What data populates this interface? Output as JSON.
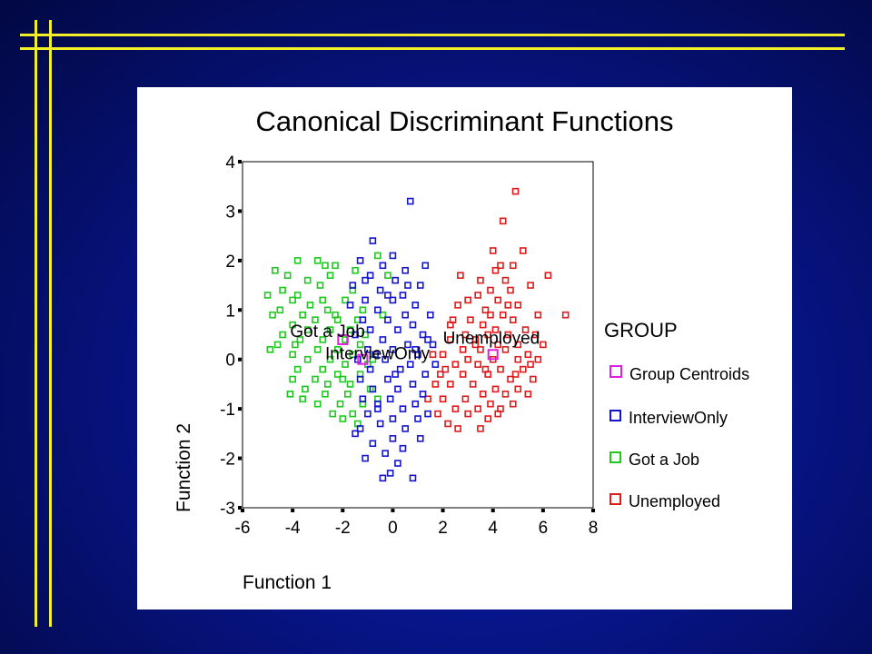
{
  "slide": {
    "accent_color": "#f2ee2a",
    "background_color": "#06127a"
  },
  "chart_data": {
    "type": "scatter",
    "title": "Canonical Discriminant Functions",
    "xlabel": "Function 1",
    "ylabel": "Function 2",
    "xlim": [
      -6,
      8
    ],
    "ylim": [
      -3,
      4
    ],
    "xticks": [
      "-6",
      "-4",
      "-2",
      "0",
      "2",
      "4",
      "6",
      "8"
    ],
    "yticks": [
      "4",
      "3",
      "2",
      "1",
      "0",
      "-1",
      "-2",
      "-3"
    ],
    "legend_title": "GROUP",
    "legend_position": "right",
    "series": [
      {
        "name": "Unemployed",
        "color": "#e01b1b",
        "points": [
          [
            4.9,
            3.4
          ],
          [
            4.4,
            2.8
          ],
          [
            4.0,
            2.2
          ],
          [
            5.2,
            2.2
          ],
          [
            4.3,
            1.9
          ],
          [
            4.8,
            1.9
          ],
          [
            4.1,
            1.8
          ],
          [
            2.7,
            1.7
          ],
          [
            6.2,
            1.7
          ],
          [
            3.5,
            1.6
          ],
          [
            4.5,
            1.6
          ],
          [
            5.5,
            1.5
          ],
          [
            4.7,
            1.4
          ],
          [
            3.9,
            1.4
          ],
          [
            3.4,
            1.3
          ],
          [
            3.0,
            1.2
          ],
          [
            4.2,
            1.2
          ],
          [
            5.0,
            1.1
          ],
          [
            2.6,
            1.1
          ],
          [
            3.7,
            1.0
          ],
          [
            4.4,
            0.9
          ],
          [
            5.8,
            0.9
          ],
          [
            6.9,
            0.9
          ],
          [
            2.4,
            0.8
          ],
          [
            3.1,
            0.8
          ],
          [
            4.8,
            0.8
          ],
          [
            3.6,
            0.7
          ],
          [
            4.1,
            0.6
          ],
          [
            5.3,
            0.6
          ],
          [
            2.9,
            0.5
          ],
          [
            3.8,
            0.5
          ],
          [
            4.6,
            0.5
          ],
          [
            5.7,
            0.5
          ],
          [
            2.3,
            0.4
          ],
          [
            3.3,
            0.4
          ],
          [
            4.2,
            0.3
          ],
          [
            5.0,
            0.3
          ],
          [
            6.0,
            0.3
          ],
          [
            2.8,
            0.2
          ],
          [
            3.5,
            0.2
          ],
          [
            4.5,
            0.2
          ],
          [
            5.4,
            0.1
          ],
          [
            2.0,
            0.1
          ],
          [
            3.0,
            0.0
          ],
          [
            4.0,
            0.0
          ],
          [
            5.0,
            0.0
          ],
          [
            5.8,
            0.0
          ],
          [
            2.5,
            -0.1
          ],
          [
            3.4,
            -0.1
          ],
          [
            4.3,
            -0.2
          ],
          [
            5.2,
            -0.2
          ],
          [
            1.9,
            -0.3
          ],
          [
            2.8,
            -0.3
          ],
          [
            3.8,
            -0.3
          ],
          [
            4.7,
            -0.4
          ],
          [
            5.6,
            -0.4
          ],
          [
            2.3,
            -0.5
          ],
          [
            3.2,
            -0.5
          ],
          [
            4.1,
            -0.6
          ],
          [
            5.0,
            -0.6
          ],
          [
            3.6,
            -0.7
          ],
          [
            4.5,
            -0.7
          ],
          [
            5.4,
            -0.7
          ],
          [
            2.0,
            -0.8
          ],
          [
            2.9,
            -0.8
          ],
          [
            3.9,
            -0.9
          ],
          [
            4.8,
            -0.9
          ],
          [
            2.5,
            -1.0
          ],
          [
            3.4,
            -1.0
          ],
          [
            4.3,
            -1.0
          ],
          [
            1.8,
            -1.1
          ],
          [
            3.0,
            -1.1
          ],
          [
            3.8,
            -1.2
          ],
          [
            2.2,
            -1.3
          ],
          [
            2.6,
            -1.4
          ],
          [
            3.5,
            -1.4
          ],
          [
            4.2,
            -1.1
          ],
          [
            1.4,
            -0.8
          ],
          [
            1.7,
            -0.5
          ],
          [
            2.1,
            -0.2
          ],
          [
            1.6,
            0.1
          ],
          [
            2.3,
            0.7
          ],
          [
            3.9,
            0.9
          ],
          [
            4.6,
            1.1
          ],
          [
            3.3,
            0.3
          ],
          [
            4.9,
            -0.3
          ],
          [
            5.5,
            -0.1
          ],
          [
            3.7,
            -0.2
          ]
        ]
      },
      {
        "name": "Got a Job",
        "color": "#1ec81e",
        "points": [
          [
            -0.6,
            2.1
          ],
          [
            -2.7,
            1.9
          ],
          [
            -3.0,
            2.0
          ],
          [
            -3.8,
            2.0
          ],
          [
            -4.7,
            1.8
          ],
          [
            -2.3,
            1.9
          ],
          [
            -1.5,
            1.8
          ],
          [
            -4.2,
            1.7
          ],
          [
            -3.4,
            1.6
          ],
          [
            -2.5,
            1.7
          ],
          [
            -4.4,
            1.4
          ],
          [
            -3.8,
            1.3
          ],
          [
            -1.6,
            1.4
          ],
          [
            -5.0,
            1.3
          ],
          [
            -4.0,
            1.2
          ],
          [
            -2.8,
            1.2
          ],
          [
            -1.9,
            1.2
          ],
          [
            -3.3,
            1.1
          ],
          [
            -4.5,
            1.0
          ],
          [
            -1.2,
            1.0
          ],
          [
            -2.6,
            1.0
          ],
          [
            -3.6,
            0.9
          ],
          [
            -4.8,
            0.9
          ],
          [
            -1.4,
            0.8
          ],
          [
            -2.2,
            0.8
          ],
          [
            -3.1,
            0.8
          ],
          [
            -4.0,
            0.7
          ],
          [
            -1.7,
            0.6
          ],
          [
            -2.5,
            0.6
          ],
          [
            -3.4,
            0.6
          ],
          [
            -4.4,
            0.5
          ],
          [
            -1.1,
            0.5
          ],
          [
            -1.9,
            0.4
          ],
          [
            -2.8,
            0.4
          ],
          [
            -3.7,
            0.4
          ],
          [
            -4.6,
            0.3
          ],
          [
            -1.3,
            0.3
          ],
          [
            -2.2,
            0.2
          ],
          [
            -3.0,
            0.2
          ],
          [
            -4.0,
            0.1
          ],
          [
            -4.9,
            0.2
          ],
          [
            -1.6,
            0.1
          ],
          [
            -2.5,
            0.0
          ],
          [
            -3.4,
            0.0
          ],
          [
            -1.0,
            -0.1
          ],
          [
            -1.9,
            -0.1
          ],
          [
            -2.8,
            -0.2
          ],
          [
            -3.8,
            -0.2
          ],
          [
            -1.3,
            -0.3
          ],
          [
            -2.2,
            -0.3
          ],
          [
            -3.1,
            -0.4
          ],
          [
            -4.0,
            -0.4
          ],
          [
            -1.7,
            -0.5
          ],
          [
            -2.6,
            -0.5
          ],
          [
            -3.5,
            -0.6
          ],
          [
            -0.9,
            -0.6
          ],
          [
            -1.8,
            -0.7
          ],
          [
            -2.7,
            -0.7
          ],
          [
            -3.6,
            -0.8
          ],
          [
            -4.1,
            -0.7
          ],
          [
            -1.2,
            -0.9
          ],
          [
            -2.1,
            -0.9
          ],
          [
            -3.0,
            -0.9
          ],
          [
            -1.6,
            -1.1
          ],
          [
            -2.4,
            -1.1
          ],
          [
            -2.0,
            -1.2
          ],
          [
            -1.4,
            -1.3
          ],
          [
            -0.6,
            -0.8
          ],
          [
            -0.8,
            0.0
          ],
          [
            -0.4,
            0.9
          ],
          [
            -0.2,
            1.7
          ],
          [
            -2.9,
            1.5
          ],
          [
            -3.9,
            0.3
          ],
          [
            -2.0,
            -0.4
          ],
          [
            -2.3,
            0.9
          ]
        ]
      },
      {
        "name": "InterviewOnly",
        "color": "#1515d0",
        "points": [
          [
            0.7,
            3.2
          ],
          [
            -0.8,
            2.4
          ],
          [
            0.0,
            2.1
          ],
          [
            1.3,
            1.9
          ],
          [
            -1.3,
            2.0
          ],
          [
            -0.4,
            1.9
          ],
          [
            0.5,
            1.8
          ],
          [
            -0.9,
            1.7
          ],
          [
            0.1,
            1.6
          ],
          [
            1.1,
            1.5
          ],
          [
            -1.6,
            1.5
          ],
          [
            -0.5,
            1.4
          ],
          [
            0.4,
            1.3
          ],
          [
            -1.1,
            1.2
          ],
          [
            0.0,
            1.2
          ],
          [
            0.9,
            1.1
          ],
          [
            -1.7,
            1.1
          ],
          [
            -0.6,
            1.0
          ],
          [
            0.5,
            0.9
          ],
          [
            1.5,
            0.9
          ],
          [
            -1.2,
            0.8
          ],
          [
            -0.2,
            0.8
          ],
          [
            0.8,
            0.7
          ],
          [
            -0.9,
            0.6
          ],
          [
            0.2,
            0.6
          ],
          [
            1.2,
            0.5
          ],
          [
            -1.5,
            0.5
          ],
          [
            -0.4,
            0.4
          ],
          [
            0.6,
            0.3
          ],
          [
            1.6,
            0.3
          ],
          [
            -1.0,
            0.2
          ],
          [
            0.0,
            0.2
          ],
          [
            1.0,
            0.1
          ],
          [
            -1.4,
            0.0
          ],
          [
            -0.3,
            0.0
          ],
          [
            0.7,
            -0.1
          ],
          [
            1.7,
            -0.1
          ],
          [
            -0.9,
            -0.2
          ],
          [
            0.3,
            -0.2
          ],
          [
            1.3,
            -0.3
          ],
          [
            -1.3,
            -0.4
          ],
          [
            -0.2,
            -0.4
          ],
          [
            0.8,
            -0.5
          ],
          [
            -0.8,
            -0.6
          ],
          [
            0.2,
            -0.6
          ],
          [
            1.2,
            -0.7
          ],
          [
            -1.2,
            -0.8
          ],
          [
            -0.1,
            -0.8
          ],
          [
            0.9,
            -0.9
          ],
          [
            -0.6,
            -1.0
          ],
          [
            0.4,
            -1.0
          ],
          [
            1.4,
            -1.1
          ],
          [
            -1.0,
            -1.1
          ],
          [
            0.0,
            -1.2
          ],
          [
            1.0,
            -1.2
          ],
          [
            -0.5,
            -1.3
          ],
          [
            0.5,
            -1.4
          ],
          [
            -1.5,
            -1.5
          ],
          [
            0.0,
            -1.6
          ],
          [
            -0.8,
            -1.7
          ],
          [
            0.4,
            -1.8
          ],
          [
            -0.3,
            -1.9
          ],
          [
            -1.1,
            -2.0
          ],
          [
            0.2,
            -2.1
          ],
          [
            -0.1,
            -2.3
          ],
          [
            -0.4,
            -2.4
          ],
          [
            0.8,
            -2.4
          ],
          [
            -1.1,
            1.6
          ],
          [
            1.4,
            0.4
          ],
          [
            -0.7,
            0.1
          ],
          [
            0.1,
            -0.3
          ],
          [
            1.1,
            -1.6
          ],
          [
            -1.3,
            -1.4
          ],
          [
            0.6,
            1.5
          ],
          [
            -0.2,
            1.3
          ],
          [
            0.9,
            0.2
          ],
          [
            -0.6,
            -0.9
          ]
        ]
      },
      {
        "name": "Group Centroids",
        "color": "#e020e0",
        "points": [
          [
            4.0,
            0.1
          ],
          [
            -1.2,
            0.0
          ],
          [
            -2.0,
            0.4
          ]
        ]
      }
    ],
    "annotations": [
      {
        "text": "Got a Job",
        "x": -4.1,
        "y": 0.45
      },
      {
        "text": "InterviewOnly",
        "x": -2.7,
        "y": 0.0
      },
      {
        "text": "Unemployed",
        "x": 2.0,
        "y": 0.32
      }
    ]
  }
}
